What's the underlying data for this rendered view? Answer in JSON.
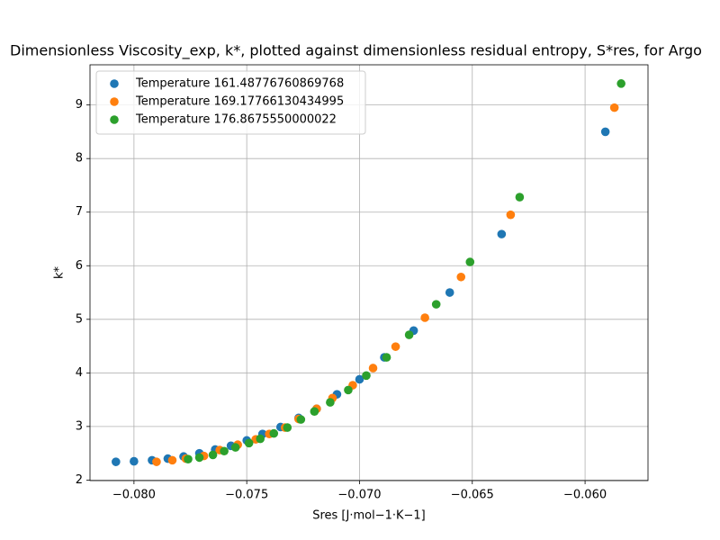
{
  "chart_data": {
    "type": "scatter",
    "title": "Dimensionless Viscosity_exp, k*, plotted against dimensionless residual entropy, S*res, for Argo",
    "x_label": "Sres  [J·mol−1·K−1]",
    "y_label": "k*",
    "xlim": [
      -0.08195,
      -0.05721
    ],
    "ylim": [
      1.99,
      9.75
    ],
    "xticks": [
      {
        "value": -0.08,
        "label": "−0.080"
      },
      {
        "value": -0.075,
        "label": "−0.075"
      },
      {
        "value": -0.07,
        "label": "−0.070"
      },
      {
        "value": -0.065,
        "label": "−0.065"
      },
      {
        "value": -0.06,
        "label": "−0.060"
      }
    ],
    "yticks": [
      2,
      3,
      4,
      5,
      6,
      7,
      8,
      9
    ],
    "grid": true,
    "legend": "upper left",
    "series": [
      {
        "name": "Temperature 161.48776760869768",
        "color": "#1f77b4",
        "x": [
          -0.0808,
          -0.08,
          -0.0792,
          -0.0785,
          -0.0778,
          -0.0771,
          -0.0764,
          -0.0757,
          -0.075,
          -0.0743,
          -0.0735,
          -0.0727,
          -0.0719,
          -0.071,
          -0.07,
          -0.0689,
          -0.0676,
          -0.066,
          -0.0637,
          -0.0591
        ],
        "values": [
          2.34,
          2.35,
          2.37,
          2.4,
          2.44,
          2.5,
          2.57,
          2.64,
          2.74,
          2.86,
          2.99,
          3.16,
          3.33,
          3.6,
          3.88,
          4.29,
          4.79,
          5.5,
          6.59,
          8.5
        ]
      },
      {
        "name": "Temperature 169.17766130434995",
        "color": "#ff7f0e",
        "x": [
          -0.079,
          -0.0783,
          -0.0777,
          -0.0769,
          -0.0762,
          -0.0754,
          -0.0746,
          -0.074,
          -0.0733,
          -0.0727,
          -0.0719,
          -0.0712,
          -0.0703,
          -0.0694,
          -0.0684,
          -0.0671,
          -0.0655,
          -0.0633,
          -0.0587
        ],
        "values": [
          2.34,
          2.37,
          2.4,
          2.45,
          2.56,
          2.66,
          2.76,
          2.86,
          2.98,
          3.14,
          3.33,
          3.53,
          3.77,
          4.09,
          4.49,
          5.03,
          5.79,
          6.95,
          8.95
        ]
      },
      {
        "name": "Temperature 176.8675550000022",
        "color": "#2ca02c",
        "x": [
          -0.0776,
          -0.0771,
          -0.0765,
          -0.076,
          -0.0755,
          -0.0749,
          -0.0744,
          -0.0738,
          -0.0732,
          -0.0726,
          -0.072,
          -0.0713,
          -0.0705,
          -0.0697,
          -0.0688,
          -0.0678,
          -0.0666,
          -0.0651,
          -0.0629,
          -0.0584
        ],
        "values": [
          2.39,
          2.42,
          2.47,
          2.54,
          2.61,
          2.69,
          2.77,
          2.87,
          2.98,
          3.13,
          3.28,
          3.45,
          3.68,
          3.95,
          4.29,
          4.71,
          5.28,
          6.07,
          7.28,
          9.4
        ]
      }
    ]
  }
}
